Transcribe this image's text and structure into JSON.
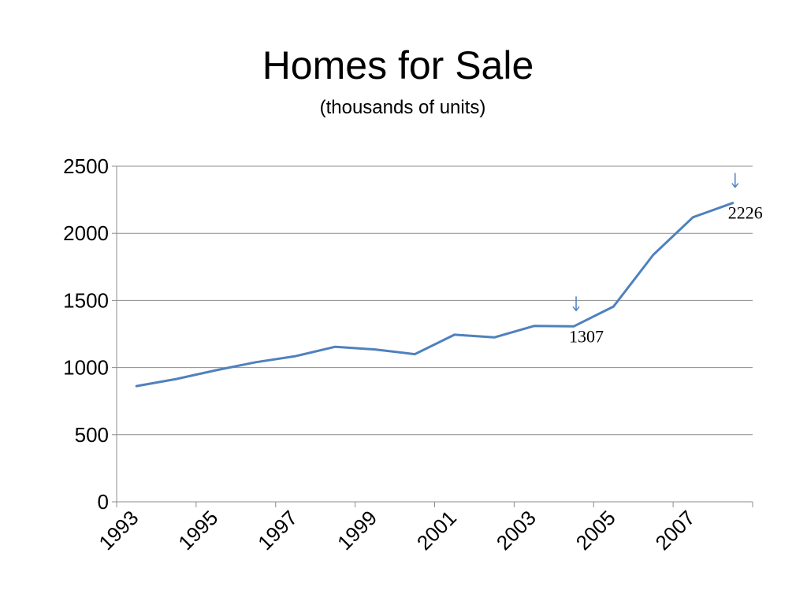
{
  "chart_data": {
    "type": "line",
    "title": "Homes for Sale",
    "subtitle": "(thousands of units)",
    "x": [
      1993,
      1994,
      1995,
      1996,
      1997,
      1998,
      1999,
      2000,
      2001,
      2002,
      2003,
      2004,
      2005,
      2006,
      2007,
      2008
    ],
    "x_tick_labels": [
      "1993",
      "1995",
      "1997",
      "1999",
      "2001",
      "2003",
      "2005",
      "2007"
    ],
    "y_ticks": [
      "0",
      "500",
      "1000",
      "1500",
      "2000",
      "2500"
    ],
    "ylim": [
      0,
      2500
    ],
    "grid": true,
    "legend": "none",
    "series": [
      {
        "color": "#4f81bd",
        "values": [
          862,
          915,
          980,
          1040,
          1085,
          1155,
          1135,
          1100,
          1245,
          1225,
          1310,
          1307,
          1455,
          1840,
          2120,
          2226
        ]
      }
    ],
    "annotations": [
      {
        "x": 2004,
        "y": 1307,
        "text": "1307",
        "arrow": "down"
      },
      {
        "x": 2008,
        "y": 2226,
        "text": "2226",
        "arrow": "down"
      }
    ],
    "arrow_color": "#4f81bd"
  }
}
